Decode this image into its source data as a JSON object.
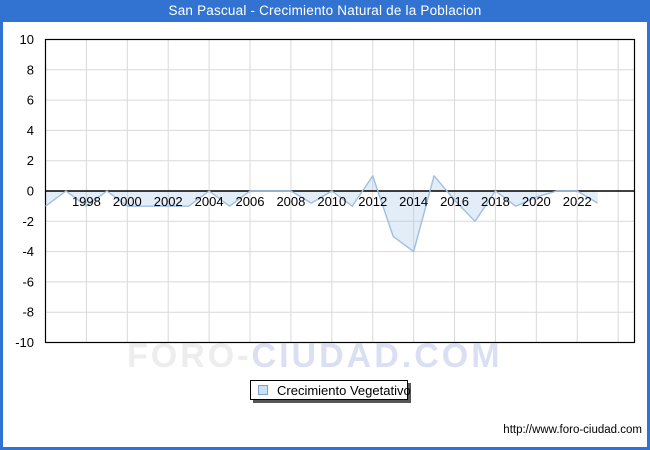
{
  "titlebar": {
    "title": "San Pascual - Crecimiento Natural de la Poblacion"
  },
  "watermark": {
    "part1": "FORO-",
    "part2": "CIUDAD.COM"
  },
  "legend": {
    "label": "Crecimiento Vegetativo"
  },
  "footer": {
    "url": "http://www.foro-ciudad.com"
  },
  "colors": {
    "accent_blue": "#3273d2",
    "series_line": "#9fbfe2",
    "series_fill": "rgba(158,195,232,0.30)",
    "grid": "#d9d9d9",
    "plot_border": "#000000",
    "swatch_fill": "#cce0f4",
    "swatch_border": "#7aa3d4"
  },
  "chart_data": {
    "type": "area",
    "title": "San Pascual - Crecimiento Natural de la Poblacion",
    "xlabel": "",
    "ylabel": "",
    "ylim": [
      -10,
      10
    ],
    "xlim": [
      1996,
      2024.8
    ],
    "grid": true,
    "baseline": 0,
    "legend_position": "bottom-center",
    "y_ticks": [
      10,
      8,
      6,
      4,
      2,
      0,
      -2,
      -4,
      -6,
      -8,
      -10
    ],
    "x_tick_labels": [
      "1998",
      "2000",
      "2002",
      "2004",
      "2006",
      "2008",
      "2010",
      "2012",
      "2014",
      "2016",
      "2018",
      "2020",
      "2022"
    ],
    "x_gridline_years": [
      1996,
      1998,
      2000,
      2002,
      2004,
      2006,
      2008,
      2010,
      2012,
      2014,
      2016,
      2018,
      2020,
      2022,
      2024
    ],
    "series": [
      {
        "name": "Crecimiento Vegetativo",
        "x": [
          1996,
          1997,
          1998,
          1999,
          2000,
          2001,
          2002,
          2003,
          2004,
          2005,
          2006,
          2007,
          2008,
          2009,
          2010,
          2011,
          2012,
          2013,
          2014,
          2015,
          2016,
          2017,
          2018,
          2019,
          2020,
          2021,
          2022,
          2023
        ],
        "values": [
          -1,
          0,
          -1,
          0,
          -1,
          -1,
          -1,
          -1,
          0,
          -1,
          0,
          0,
          0,
          -0.8,
          0,
          -1,
          1,
          -3,
          -4,
          1,
          -0.6,
          -2,
          0,
          -1,
          -0.4,
          0,
          0,
          -0.8
        ]
      }
    ]
  }
}
